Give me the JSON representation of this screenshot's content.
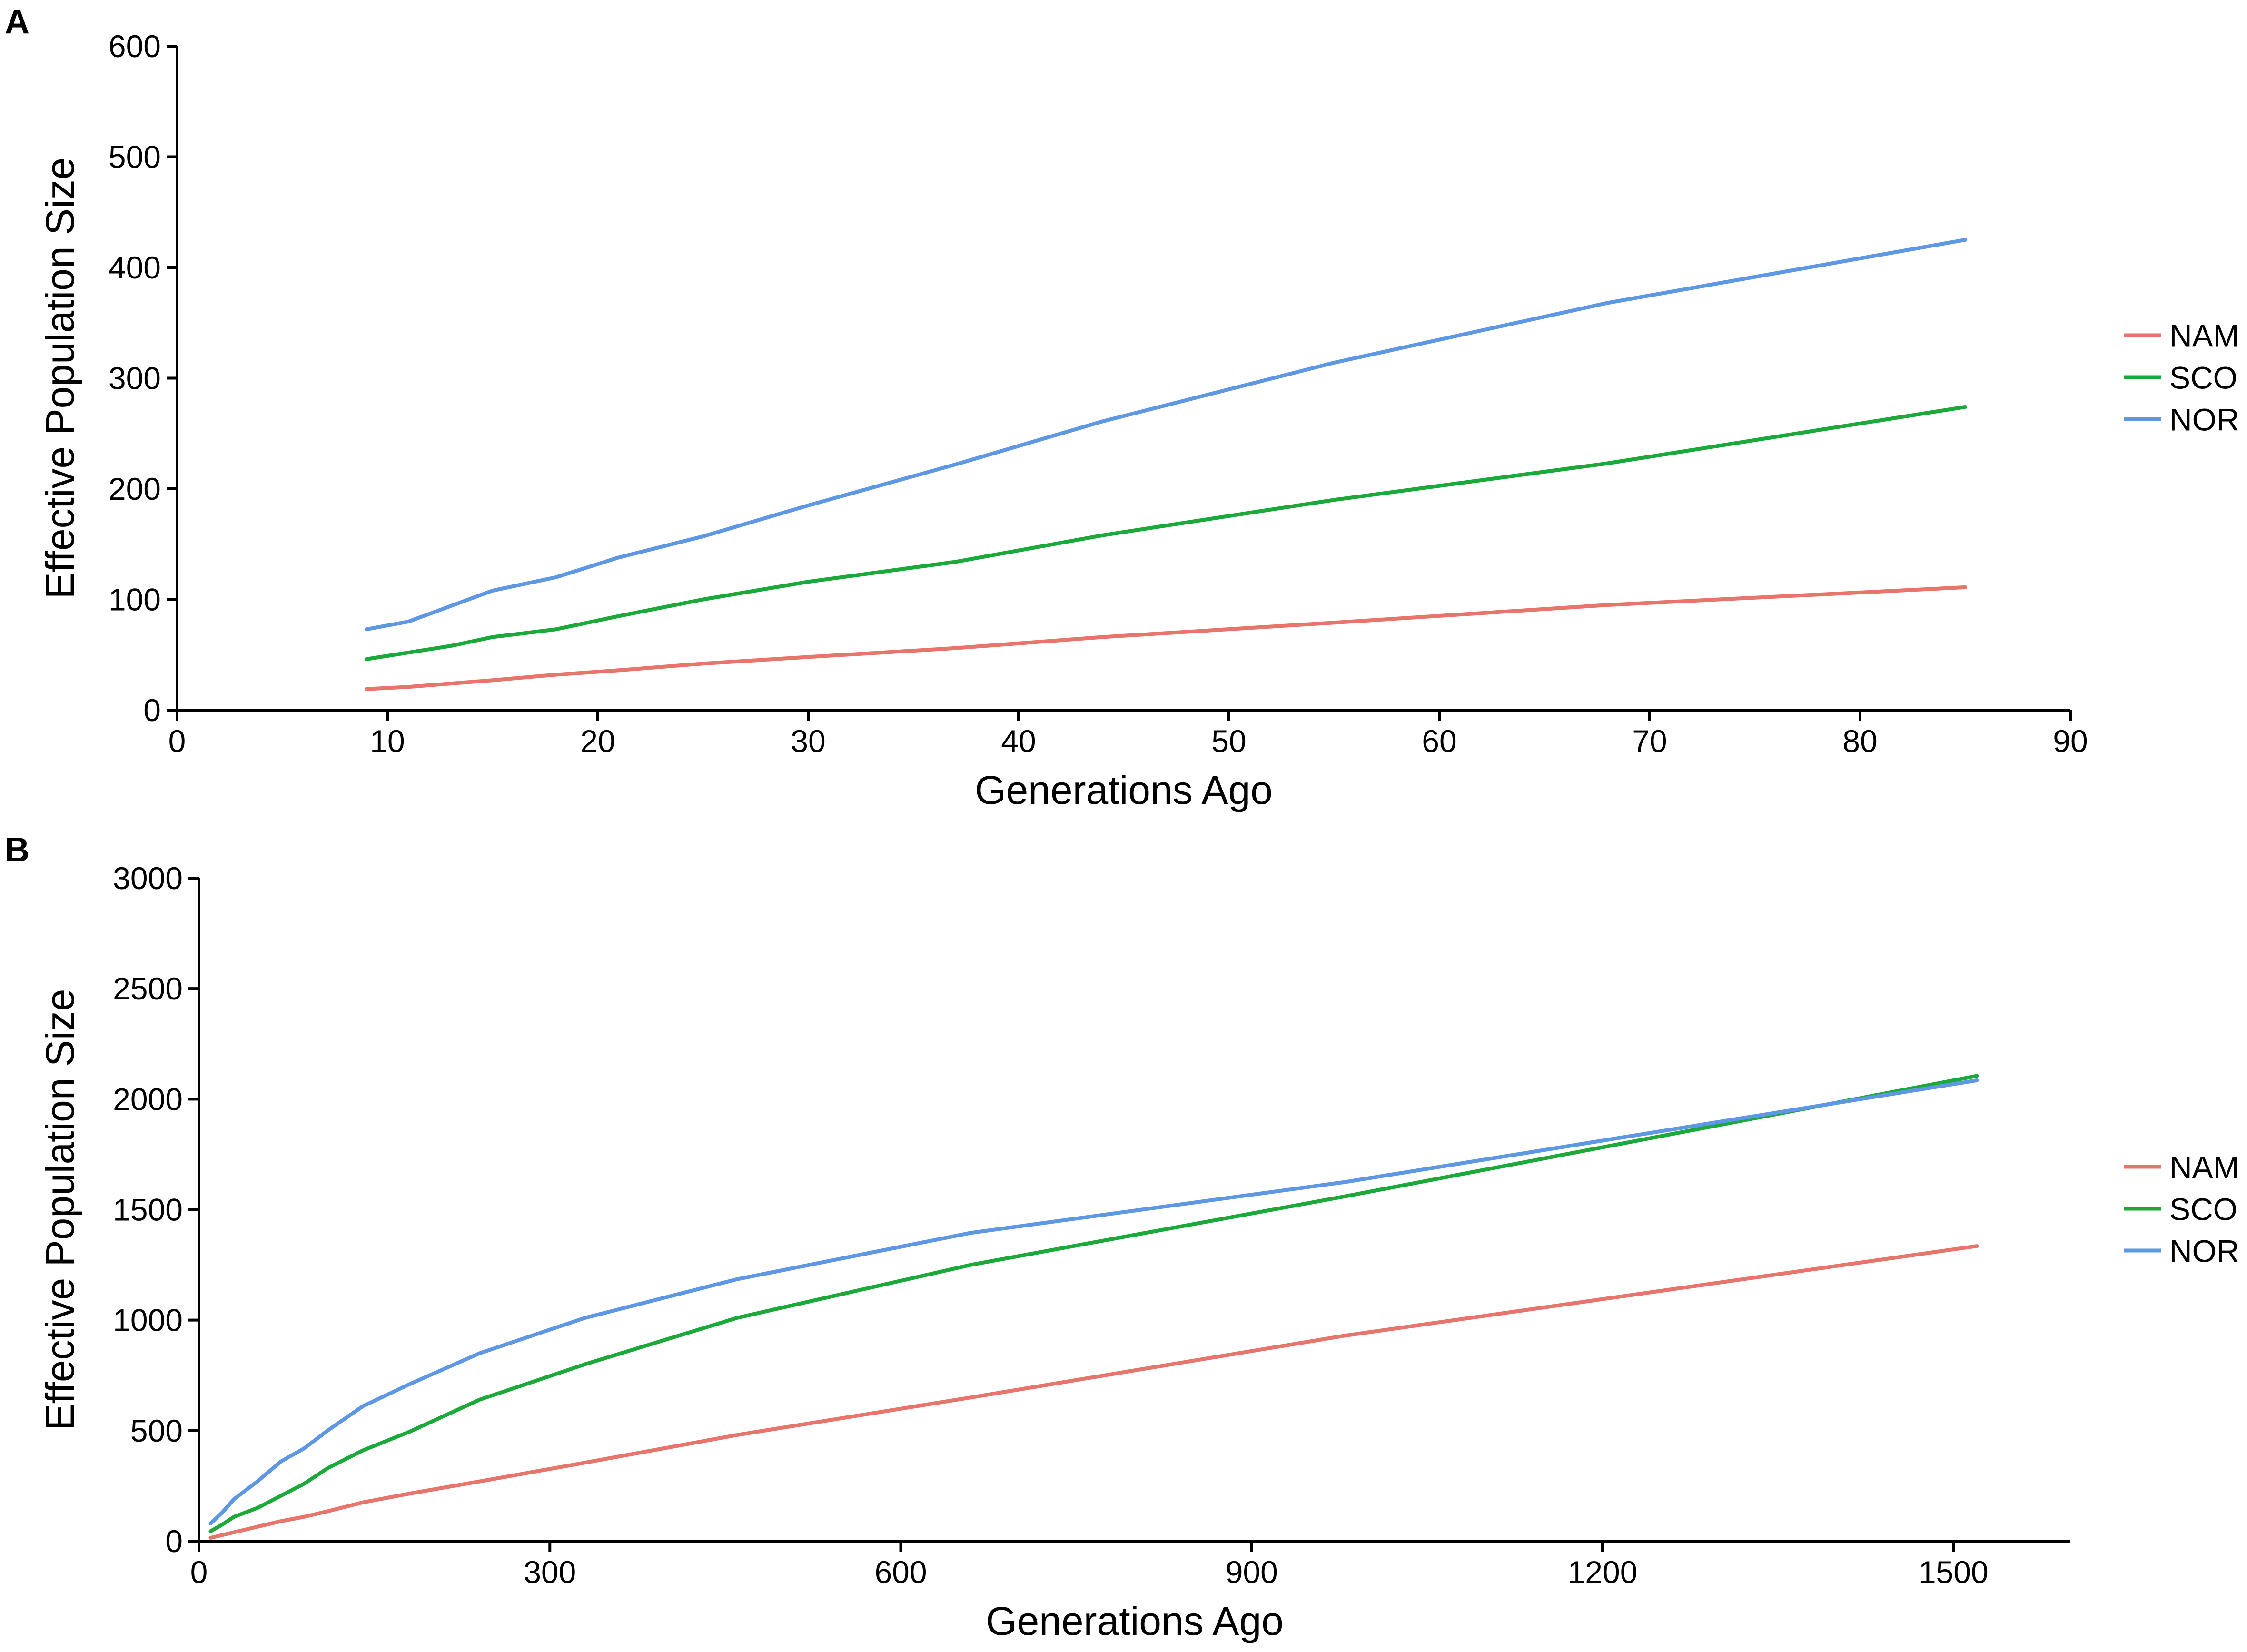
{
  "chart_data": [
    {
      "panel": "A",
      "type": "line",
      "title": "",
      "xlabel": "Generations Ago",
      "ylabel": "Effective Population Size",
      "xlim": [
        0,
        90
      ],
      "ylim": [
        0,
        600
      ],
      "xticks": [
        0,
        10,
        20,
        30,
        40,
        50,
        60,
        70,
        80,
        90
      ],
      "yticks": [
        0,
        100,
        200,
        300,
        400,
        500,
        600
      ],
      "grid": false,
      "legend_position": "right",
      "series": [
        {
          "name": "NAM",
          "color": "#E8756B",
          "points": [
            [
              9,
              19
            ],
            [
              11,
              21
            ],
            [
              15,
              27
            ],
            [
              18,
              32
            ],
            [
              21,
              36
            ],
            [
              25,
              42
            ],
            [
              30,
              48
            ],
            [
              37,
              56
            ],
            [
              44,
              66
            ],
            [
              55,
              79
            ],
            [
              68,
              95
            ],
            [
              85,
              111
            ]
          ]
        },
        {
          "name": "SCO",
          "color": "#1BAA3A",
          "points": [
            [
              9,
              46
            ],
            [
              11,
              52
            ],
            [
              13,
              58
            ],
            [
              15,
              66
            ],
            [
              18,
              73
            ],
            [
              21,
              85
            ],
            [
              25,
              100
            ],
            [
              30,
              116
            ],
            [
              37,
              134
            ],
            [
              44,
              158
            ],
            [
              55,
              190
            ],
            [
              68,
              223
            ],
            [
              85,
              274
            ]
          ]
        },
        {
          "name": "NOR",
          "color": "#5E97E3",
          "points": [
            [
              9,
              73
            ],
            [
              11,
              80
            ],
            [
              15,
              108
            ],
            [
              18,
              120
            ],
            [
              21,
              138
            ],
            [
              25,
              157
            ],
            [
              30,
              185
            ],
            [
              37,
              222
            ],
            [
              44,
              261
            ],
            [
              55,
              314
            ],
            [
              68,
              368
            ],
            [
              85,
              425
            ]
          ]
        }
      ]
    },
    {
      "panel": "B",
      "type": "line",
      "title": "",
      "xlabel": "Generations Ago",
      "ylabel": "Effective Population Size",
      "xlim": [
        0,
        1600
      ],
      "ylim": [
        0,
        3000
      ],
      "xticks": [
        0,
        300,
        600,
        900,
        1200,
        1500
      ],
      "yticks": [
        0,
        500,
        1000,
        1500,
        2000,
        2500,
        3000
      ],
      "grid": false,
      "legend_position": "right",
      "series": [
        {
          "name": "NAM",
          "color": "#E8756B",
          "points": [
            [
              10,
              15
            ],
            [
              30,
              40
            ],
            [
              50,
              65
            ],
            [
              70,
              90
            ],
            [
              90,
              110
            ],
            [
              110,
              135
            ],
            [
              140,
              175
            ],
            [
              180,
              215
            ],
            [
              240,
              270
            ],
            [
              330,
              355
            ],
            [
              460,
              480
            ],
            [
              660,
              650
            ],
            [
              980,
              930
            ],
            [
              1520,
              1335
            ]
          ]
        },
        {
          "name": "SCO",
          "color": "#1BAA3A",
          "points": [
            [
              10,
              45
            ],
            [
              20,
              75
            ],
            [
              30,
              110
            ],
            [
              50,
              150
            ],
            [
              70,
              205
            ],
            [
              90,
              260
            ],
            [
              110,
              330
            ],
            [
              140,
              410
            ],
            [
              180,
              495
            ],
            [
              240,
              640
            ],
            [
              330,
              800
            ],
            [
              460,
              1010
            ],
            [
              660,
              1250
            ],
            [
              980,
              1560
            ],
            [
              1520,
              2105
            ]
          ]
        },
        {
          "name": "NOR",
          "color": "#5E97E3",
          "points": [
            [
              10,
              80
            ],
            [
              20,
              130
            ],
            [
              30,
              190
            ],
            [
              50,
              270
            ],
            [
              70,
              360
            ],
            [
              90,
              420
            ],
            [
              110,
              500
            ],
            [
              140,
              610
            ],
            [
              180,
              710
            ],
            [
              240,
              850
            ],
            [
              330,
              1010
            ],
            [
              460,
              1185
            ],
            [
              660,
              1395
            ],
            [
              980,
              1625
            ],
            [
              1520,
              2085
            ]
          ]
        }
      ]
    }
  ]
}
